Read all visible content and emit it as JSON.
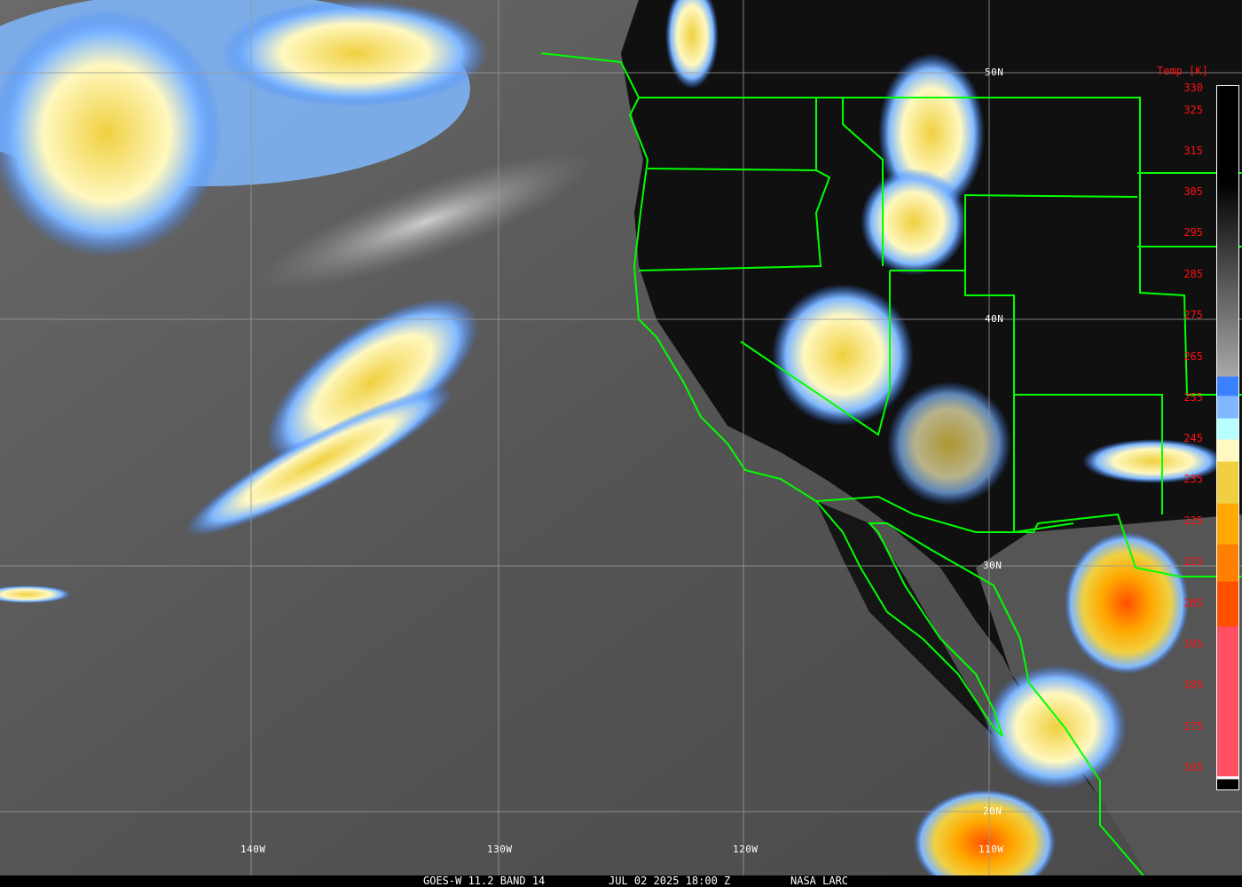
{
  "caption": {
    "satellite": "GOES-W 11.2 BAND 14",
    "datetime": "JUL 02 2025 18:00 Z",
    "source": "NASA LARC"
  },
  "latitude_labels": [
    "50N",
    "40N",
    "30N",
    "20N"
  ],
  "longitude_labels": [
    "140W",
    "130W",
    "120W",
    "110W"
  ],
  "colorbar": {
    "title": "Temp [K]",
    "ticks": [
      "330",
      "325",
      "315",
      "305",
      "295",
      "285",
      "275",
      "265",
      "255",
      "245",
      "235",
      "225",
      "215",
      "205",
      "195",
      "185",
      "175",
      "165"
    ],
    "colors": {
      "cold_pink": "#ff5064",
      "red_orange": "#ff5000",
      "orange": "#ff8000",
      "amber": "#ffa800",
      "yellow": "#f0d040",
      "cream": "#fff8c0",
      "cyan": "#b8ffff",
      "light_blue": "#80b8ff",
      "blue": "#3a80ff",
      "warm_black": "#000000"
    }
  },
  "overlay_color": "#00ff00"
}
